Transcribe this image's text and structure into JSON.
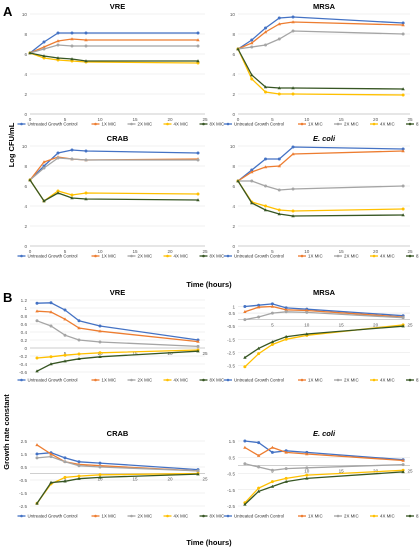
{
  "panel_labels": [
    "A",
    "B"
  ],
  "shared_axis_labels": {
    "a_x": "Time (hours)",
    "a_y": "Log CFU/mL",
    "b_x": "Time (hours)",
    "b_y": "Growth rate constant"
  },
  "series_names": [
    "Untreated Growth Control",
    "1X MIC",
    "2X MIC",
    "4X MIC",
    "8X MIC"
  ],
  "series_colors": [
    "#4472C4",
    "#ED7D31",
    "#A5A5A5",
    "#FFC000",
    "#375623"
  ],
  "chart_data": [
    {
      "type": "line",
      "panel": "A",
      "title": "VRE",
      "title_italic": false,
      "x": [
        0,
        2,
        4,
        6,
        8,
        24
      ],
      "xlim": [
        0,
        25
      ],
      "xticks": [
        0,
        5,
        10,
        15,
        20,
        25
      ],
      "ylim": [
        0,
        10
      ],
      "yticks": [
        0,
        2,
        4,
        6,
        8,
        10
      ],
      "series": [
        {
          "name": "Untreated Growth Control",
          "values": [
            6.1,
            7.2,
            8.1,
            8.1,
            8.1,
            8.1
          ]
        },
        {
          "name": "1X MIC",
          "values": [
            6.1,
            6.7,
            7.3,
            7.5,
            7.4,
            7.4
          ]
        },
        {
          "name": "2X MIC",
          "values": [
            6.1,
            6.5,
            6.9,
            6.8,
            6.8,
            6.8
          ]
        },
        {
          "name": "4X MIC",
          "values": [
            6.1,
            5.6,
            5.4,
            5.3,
            5.2,
            5.1
          ]
        },
        {
          "name": "8X MIC",
          "values": [
            6.1,
            5.8,
            5.6,
            5.5,
            5.3,
            5.3
          ]
        }
      ]
    },
    {
      "type": "line",
      "panel": "A",
      "title": "MRSA",
      "title_italic": false,
      "x": [
        0,
        2,
        4,
        6,
        8,
        24
      ],
      "xlim": [
        0,
        25
      ],
      "xticks": [
        0,
        5,
        10,
        15,
        20,
        25
      ],
      "ylim": [
        0,
        10
      ],
      "yticks": [
        0,
        2,
        4,
        6,
        8,
        10
      ],
      "series": [
        {
          "name": "Untreated Growth Control",
          "values": [
            6.5,
            7.4,
            8.6,
            9.6,
            9.7,
            9.1
          ]
        },
        {
          "name": "1X MIC",
          "values": [
            6.5,
            7.1,
            8.2,
            9.0,
            9.2,
            8.9
          ]
        },
        {
          "name": "2X MIC",
          "values": [
            6.5,
            6.7,
            6.9,
            7.5,
            8.3,
            8.0
          ]
        },
        {
          "name": "4X MIC",
          "values": [
            6.5,
            3.5,
            2.2,
            2.0,
            2.0,
            1.9
          ]
        },
        {
          "name": "8X MIC",
          "values": [
            6.5,
            3.9,
            2.7,
            2.6,
            2.6,
            2.5
          ]
        }
      ]
    },
    {
      "type": "line",
      "panel": "A",
      "title": "CRAB",
      "title_italic": false,
      "x": [
        0,
        2,
        4,
        6,
        8,
        24
      ],
      "xlim": [
        0,
        25
      ],
      "xticks": [
        0,
        5,
        10,
        15,
        20,
        25
      ],
      "ylim": [
        0,
        10
      ],
      "yticks": [
        0,
        2,
        4,
        6,
        8,
        10
      ],
      "series": [
        {
          "name": "Untreated Growth Control",
          "values": [
            6.6,
            8.0,
            9.3,
            9.6,
            9.5,
            9.3
          ]
        },
        {
          "name": "1X MIC",
          "values": [
            6.6,
            8.4,
            8.9,
            8.7,
            8.6,
            8.7
          ]
        },
        {
          "name": "2X MIC",
          "values": [
            6.6,
            7.8,
            8.8,
            8.7,
            8.6,
            8.6
          ]
        },
        {
          "name": "4X MIC",
          "values": [
            6.6,
            4.5,
            5.5,
            5.1,
            5.3,
            5.2
          ]
        },
        {
          "name": "8X MIC",
          "values": [
            6.6,
            4.5,
            5.3,
            4.8,
            4.7,
            4.6
          ]
        }
      ]
    },
    {
      "type": "line",
      "panel": "A",
      "title": "E. coli",
      "title_italic": true,
      "x": [
        0,
        2,
        4,
        6,
        8,
        24
      ],
      "xlim": [
        0,
        25
      ],
      "xticks": [
        0,
        5,
        10,
        15,
        20,
        25
      ],
      "ylim": [
        0,
        10
      ],
      "yticks": [
        0,
        2,
        4,
        6,
        8,
        10
      ],
      "series": [
        {
          "name": "Untreated Growth Control",
          "values": [
            6.5,
            7.6,
            8.7,
            8.7,
            9.9,
            9.7
          ]
        },
        {
          "name": "1X MIC",
          "values": [
            6.5,
            7.4,
            7.9,
            8.0,
            9.2,
            9.5
          ]
        },
        {
          "name": "2X MIC",
          "values": [
            6.5,
            6.5,
            6.0,
            5.6,
            5.7,
            6.0
          ]
        },
        {
          "name": "4X MIC",
          "values": [
            6.5,
            4.4,
            4.0,
            3.6,
            3.5,
            3.7
          ]
        },
        {
          "name": "8X MIC",
          "values": [
            6.5,
            4.3,
            3.6,
            3.2,
            3.0,
            3.1
          ]
        }
      ]
    },
    {
      "type": "line",
      "panel": "B",
      "title": "VRE",
      "title_italic": false,
      "x": [
        1,
        3,
        5,
        7,
        10,
        24
      ],
      "xlim": [
        0,
        25
      ],
      "xticks": [
        5,
        10,
        15,
        20,
        25
      ],
      "ylim": [
        -0.6,
        1.2
      ],
      "yticks": [
        -0.6,
        -0.4,
        -0.2,
        0,
        0.2,
        0.4,
        0.6,
        0.8,
        1,
        1.2
      ],
      "ytick_labels": [
        "-0.6",
        "-0.4",
        "-0.2",
        "0",
        "0.2",
        "0.4",
        "0.6",
        "0.8",
        "1",
        "1.2"
      ],
      "series": [
        {
          "name": "Untreated Growth Control",
          "values": [
            1.12,
            1.13,
            0.95,
            0.68,
            0.55,
            0.2
          ]
        },
        {
          "name": "1X MIC",
          "values": [
            0.92,
            0.9,
            0.72,
            0.5,
            0.42,
            0.16
          ]
        },
        {
          "name": "2X MIC",
          "values": [
            0.68,
            0.55,
            0.32,
            0.2,
            0.15,
            0.04
          ]
        },
        {
          "name": "4X MIC",
          "values": [
            -0.25,
            -0.22,
            -0.18,
            -0.15,
            -0.12,
            -0.05
          ]
        },
        {
          "name": "8X MIC",
          "values": [
            -0.58,
            -0.4,
            -0.33,
            -0.27,
            -0.22,
            -0.08
          ]
        }
      ]
    },
    {
      "type": "line",
      "panel": "B",
      "title": "MRSA",
      "title_italic": false,
      "x": [
        1,
        3,
        5,
        7,
        10,
        24
      ],
      "xlim": [
        0,
        25
      ],
      "xticks": [
        5,
        10,
        15,
        20,
        25
      ],
      "ylim": [
        -4,
        1.5
      ],
      "yticks": [
        -3.5,
        -2.5,
        -1.5,
        -0.5,
        0.5,
        1
      ],
      "ytick_labels": [
        "-3.5",
        "-2.5",
        "-1.5",
        "-0.5",
        "0.5",
        "1"
      ],
      "series": [
        {
          "name": "Untreated Growth Control",
          "values": [
            1.0,
            1.1,
            1.2,
            0.9,
            0.8,
            0.3
          ]
        },
        {
          "name": "1X MIC",
          "values": [
            0.6,
            0.95,
            1.0,
            0.75,
            0.7,
            0.2
          ]
        },
        {
          "name": "2X MIC",
          "values": [
            0.0,
            0.2,
            0.5,
            0.6,
            0.55,
            0.15
          ]
        },
        {
          "name": "4X MIC",
          "values": [
            -3.6,
            -2.6,
            -1.9,
            -1.5,
            -1.2,
            -0.4
          ]
        },
        {
          "name": "8X MIC",
          "values": [
            -2.9,
            -2.2,
            -1.7,
            -1.3,
            -1.1,
            -0.5
          ]
        }
      ]
    },
    {
      "type": "line",
      "panel": "B",
      "title": "CRAB",
      "title_italic": false,
      "x": [
        1,
        3,
        5,
        7,
        10,
        24
      ],
      "xlim": [
        0,
        25
      ],
      "xticks": [
        5,
        10,
        15,
        20,
        25
      ],
      "ylim": [
        -2.5,
        2.5
      ],
      "yticks": [
        -2.5,
        -1.5,
        -0.5,
        0.5,
        1.5,
        2.5
      ],
      "ytick_labels": [
        "-2.5",
        "-1.5",
        "-0.5",
        "0.5",
        "1.5",
        "2.5"
      ],
      "series": [
        {
          "name": "Untreated Growth Control",
          "values": [
            1.5,
            1.6,
            1.2,
            0.9,
            0.8,
            0.3
          ]
        },
        {
          "name": "1X MIC",
          "values": [
            2.2,
            1.5,
            0.9,
            0.7,
            0.6,
            0.2
          ]
        },
        {
          "name": "2X MIC",
          "values": [
            1.2,
            1.3,
            0.9,
            0.6,
            0.5,
            0.2
          ]
        },
        {
          "name": "4X MIC",
          "values": [
            -2.3,
            -0.8,
            -0.3,
            -0.2,
            -0.1,
            0.0
          ]
        },
        {
          "name": "8X MIC",
          "values": [
            -2.3,
            -0.7,
            -0.6,
            -0.4,
            -0.3,
            -0.05
          ]
        }
      ]
    },
    {
      "type": "line",
      "panel": "B",
      "title": "E. coli",
      "title_italic": true,
      "x": [
        1,
        3,
        5,
        7,
        10,
        24
      ],
      "xlim": [
        0,
        25
      ],
      "xticks": [
        5,
        10,
        15,
        20,
        25
      ],
      "ylim": [
        -2.5,
        1.5
      ],
      "yticks": [
        -2.5,
        -1.5,
        -0.5,
        0.5,
        1.5
      ],
      "ytick_labels": [
        "-2.5",
        "-1.5",
        "-0.5",
        "0.5",
        "1.5"
      ],
      "series": [
        {
          "name": "Untreated Growth Control",
          "values": [
            1.5,
            1.4,
            0.8,
            0.9,
            0.8,
            0.35
          ]
        },
        {
          "name": "1X MIC",
          "values": [
            1.1,
            0.6,
            1.1,
            0.8,
            0.7,
            0.3
          ]
        },
        {
          "name": "2X MIC",
          "values": [
            0.1,
            -0.1,
            -0.3,
            -0.2,
            -0.15,
            0.05
          ]
        },
        {
          "name": "4X MIC",
          "values": [
            -2.3,
            -1.4,
            -1.0,
            -0.8,
            -0.6,
            -0.3
          ]
        },
        {
          "name": "8X MIC",
          "values": [
            -2.4,
            -1.6,
            -1.3,
            -1.0,
            -0.8,
            -0.4
          ]
        }
      ]
    }
  ]
}
